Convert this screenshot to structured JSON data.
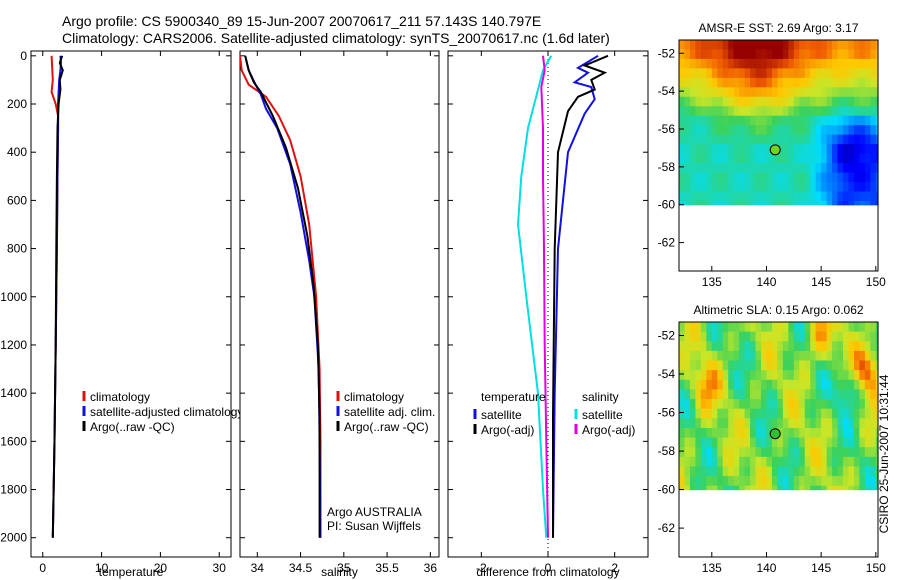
{
  "header": {
    "line1": "Argo profile: CS 5900340_89 15-Jun-2007 20070617_211 57.143S 140.797E",
    "line2": "Climatology: CARS2006. Satellite-adjusted climatology: synTS_20070617.nc (1.6d later)"
  },
  "footer_stamp": "CSIRO 25-Jun-2007 10:31:44",
  "colors": {
    "climatology": "#e01010",
    "satellite": "#1010e0",
    "argo": "#000000",
    "sal_satellite": "#00e0e0",
    "sal_argo": "#e000e0",
    "marker_sst": "#78d020",
    "marker_sla": "#30c030"
  },
  "chart_data": [
    {
      "id": "temperature",
      "type": "line",
      "xlabel": "temperature",
      "xticks": [
        0,
        10,
        20,
        30
      ],
      "xlim": [
        -2,
        32
      ],
      "yticks": [
        0,
        200,
        400,
        600,
        800,
        1000,
        1200,
        1400,
        1600,
        1800,
        2000
      ],
      "ylim": [
        -20,
        2080
      ],
      "yreversed": true,
      "legend": [
        "climatology",
        "satellite-adjusted climatology",
        "Argo(..raw -QC)"
      ],
      "series": [
        {
          "name": "climatology",
          "color": "climatology",
          "points": [
            [
              1.5,
              0
            ],
            [
              1.6,
              50
            ],
            [
              1.7,
              100
            ],
            [
              1.5,
              150
            ],
            [
              2.2,
              200
            ],
            [
              2.6,
              250
            ],
            [
              2.6,
              300
            ],
            [
              2.5,
              500
            ],
            [
              2.4,
              800
            ],
            [
              2.2,
              1200
            ],
            [
              2.0,
              1600
            ],
            [
              1.7,
              2000
            ]
          ]
        },
        {
          "name": "satellite-adjusted climatology",
          "color": "satellite",
          "points": [
            [
              3.0,
              0
            ],
            [
              3.1,
              30
            ],
            [
              3.0,
              60
            ],
            [
              2.8,
              100
            ],
            [
              2.7,
              150
            ],
            [
              2.6,
              200
            ],
            [
              2.6,
              300
            ],
            [
              2.5,
              500
            ],
            [
              2.4,
              800
            ],
            [
              2.2,
              1200
            ],
            [
              2.0,
              1600
            ],
            [
              1.7,
              2000
            ]
          ]
        },
        {
          "name": "Argo(..raw -QC)",
          "color": "argo",
          "points": [
            [
              3.3,
              0
            ],
            [
              2.9,
              30
            ],
            [
              3.4,
              60
            ],
            [
              2.9,
              100
            ],
            [
              3.0,
              140
            ],
            [
              2.7,
              200
            ],
            [
              2.5,
              300
            ],
            [
              2.4,
              500
            ],
            [
              2.3,
              800
            ],
            [
              2.2,
              1200
            ],
            [
              2.0,
              1600
            ],
            [
              1.7,
              2000
            ]
          ]
        }
      ]
    },
    {
      "id": "salinity",
      "type": "line",
      "xlabel": "salinity",
      "xticks": [
        34,
        34.5,
        35,
        35.5,
        36
      ],
      "xlim": [
        33.8,
        36.1
      ],
      "yticks": [
        0,
        200,
        400,
        600,
        800,
        1000,
        1200,
        1400,
        1600,
        1800,
        2000
      ],
      "ylim": [
        -20,
        2080
      ],
      "yreversed": true,
      "legend": [
        "climatology",
        "satellite adj. clim.",
        "Argo(..raw -QC)"
      ],
      "annotation": [
        "Argo AUSTRALIA",
        "PI: Susan Wijffels"
      ],
      "series": [
        {
          "name": "climatology",
          "color": "climatology",
          "points": [
            [
              33.8,
              0
            ],
            [
              33.82,
              60
            ],
            [
              33.9,
              120
            ],
            [
              34.1,
              170
            ],
            [
              34.25,
              250
            ],
            [
              34.38,
              350
            ],
            [
              34.5,
              500
            ],
            [
              34.6,
              700
            ],
            [
              34.68,
              1000
            ],
            [
              34.72,
              1300
            ],
            [
              34.73,
              1600
            ],
            [
              34.73,
              2000
            ]
          ]
        },
        {
          "name": "satellite adj. clim.",
          "color": "satellite",
          "points": [
            [
              33.86,
              0
            ],
            [
              33.9,
              60
            ],
            [
              33.98,
              120
            ],
            [
              34.04,
              160
            ],
            [
              34.1,
              220
            ],
            [
              34.23,
              300
            ],
            [
              34.38,
              450
            ],
            [
              34.5,
              650
            ],
            [
              34.6,
              850
            ],
            [
              34.66,
              1000
            ],
            [
              34.71,
              1300
            ],
            [
              34.72,
              1600
            ],
            [
              34.73,
              2000
            ]
          ]
        },
        {
          "name": "Argo(..raw -QC)",
          "color": "argo",
          "points": [
            [
              33.86,
              0
            ],
            [
              33.9,
              60
            ],
            [
              33.96,
              110
            ],
            [
              34.04,
              150
            ],
            [
              34.18,
              250
            ],
            [
              34.33,
              380
            ],
            [
              34.47,
              550
            ],
            [
              34.58,
              750
            ],
            [
              34.65,
              950
            ],
            [
              34.7,
              1200
            ],
            [
              34.72,
              1500
            ],
            [
              34.72,
              2000
            ]
          ]
        }
      ]
    },
    {
      "id": "difference",
      "type": "line",
      "xlabel": "difference from climatology",
      "xticks": [
        -2,
        0,
        2
      ],
      "xlim": [
        -3,
        3
      ],
      "yticks": [
        0,
        200,
        400,
        600,
        800,
        1000,
        1200,
        1400,
        1600,
        1800,
        2000
      ],
      "ylim": [
        -20,
        2080
      ],
      "yreversed": true,
      "legend": {
        "temperature": {
          "title": "temperature",
          "items": [
            "satellite",
            "Argo(-adj)"
          ]
        },
        "salinity": {
          "title": "salinity",
          "items": [
            "satellite",
            "Argo(-adj)"
          ]
        }
      },
      "series": [
        {
          "name": "temperature satellite",
          "color": "satellite",
          "points": [
            [
              1.5,
              0
            ],
            [
              0.9,
              50
            ],
            [
              1.2,
              70
            ],
            [
              0.8,
              110
            ],
            [
              1.3,
              130
            ],
            [
              1.4,
              180
            ],
            [
              1.1,
              240
            ],
            [
              0.6,
              400
            ],
            [
              0.3,
              800
            ],
            [
              0.2,
              1400
            ],
            [
              0.15,
              2000
            ]
          ]
        },
        {
          "name": "temperature Argo(-adj)",
          "color": "argo",
          "points": [
            [
              1.8,
              0
            ],
            [
              1.1,
              40
            ],
            [
              1.7,
              70
            ],
            [
              1.3,
              100
            ],
            [
              1.4,
              140
            ],
            [
              0.9,
              170
            ],
            [
              0.6,
              230
            ],
            [
              0.3,
              400
            ],
            [
              0.2,
              800
            ],
            [
              0.15,
              1500
            ],
            [
              0.15,
              2000
            ]
          ]
        },
        {
          "name": "salinity satellite",
          "color": "sal_satellite",
          "points": [
            [
              0.1,
              0
            ],
            [
              -0.15,
              60
            ],
            [
              -0.3,
              140
            ],
            [
              -0.6,
              300
            ],
            [
              -0.8,
              500
            ],
            [
              -0.9,
              700
            ],
            [
              -0.65,
              1000
            ],
            [
              -0.3,
              1400
            ],
            [
              -0.15,
              1800
            ],
            [
              -0.05,
              2000
            ]
          ]
        },
        {
          "name": "salinity Argo(-adj)",
          "color": "sal_argo",
          "points": [
            [
              -0.15,
              0
            ],
            [
              -0.1,
              60
            ],
            [
              -0.2,
              130
            ],
            [
              -0.15,
              300
            ],
            [
              -0.15,
              500
            ],
            [
              -0.12,
              800
            ],
            [
              -0.1,
              1200
            ],
            [
              -0.05,
              1600
            ],
            [
              0.0,
              2000
            ]
          ]
        }
      ]
    },
    {
      "id": "sst_map",
      "type": "heatmap",
      "title": "AMSR-E SST: 2.69  Argo: 3.17",
      "xticks": [
        135,
        140,
        145,
        150
      ],
      "xlim": [
        132,
        150.2
      ],
      "yticks": [
        -52,
        -54,
        -56,
        -58,
        -60,
        -62
      ],
      "ylim": [
        -63.5,
        -51.3
      ],
      "data_lat_min": -60,
      "marker": {
        "lon": 140.8,
        "lat": -57.1
      }
    },
    {
      "id": "sla_map",
      "type": "heatmap",
      "title": "Altimetric SLA: 0.15  Argo: 0.062",
      "xticks": [
        135,
        140,
        145,
        150
      ],
      "xlim": [
        132,
        150.2
      ],
      "yticks": [
        -52,
        -54,
        -56,
        -58,
        -60,
        -62
      ],
      "ylim": [
        -63.5,
        -51.3
      ],
      "data_lat_min": -60,
      "marker": {
        "lon": 140.8,
        "lat": -57.1
      }
    }
  ]
}
